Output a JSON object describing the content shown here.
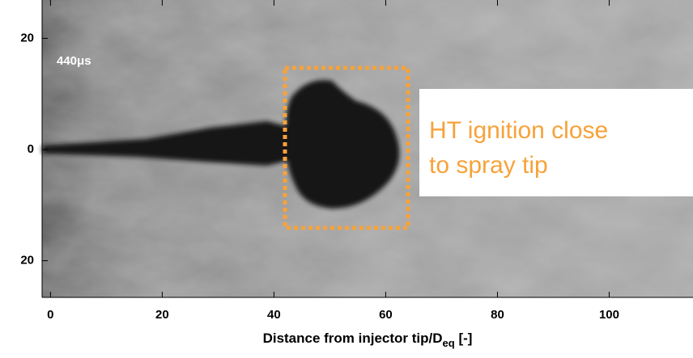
{
  "chart_data": {
    "type": "image",
    "time_label": "440μs",
    "annotation": [
      "HT ignition close",
      "to spray tip"
    ],
    "xlabel": [
      "Distance from injector tip/D",
      "eq",
      " [-]"
    ],
    "xlim": [
      -1.5,
      115
    ],
    "xticks": [
      0,
      20,
      40,
      60,
      80,
      100
    ],
    "ylim": [
      -26.6,
      26.9
    ],
    "yticks": [
      20,
      0,
      {
        "value": -20,
        "label": "20"
      }
    ],
    "highlight_color": "#f7a23a"
  }
}
